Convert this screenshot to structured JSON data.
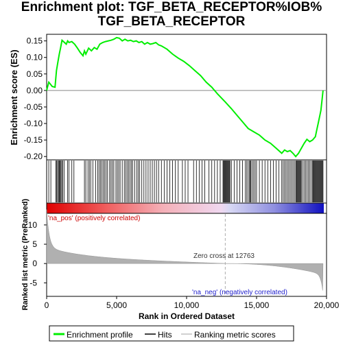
{
  "chart_data": {
    "type": "line",
    "title_line1": "Enrichment plot: TGF_BETA_RECEPTOR%IOB%",
    "title_line2": "TGF_BETA_RECEPTOR",
    "es_panel": {
      "ylabel": "Enrichment score (ES)",
      "ylim": [
        -0.21,
        0.17
      ],
      "yticks": [
        0.15,
        0.1,
        0.05,
        0.0,
        -0.05,
        -0.1,
        -0.15,
        -0.2
      ],
      "ytick_labels": [
        "0.15",
        "0.10",
        "0.05",
        "0.00",
        "-0.05",
        "-0.10",
        "-0.15",
        "-0.20"
      ],
      "series": [
        {
          "name": "Enrichment profile",
          "color": "#00ee00",
          "x": [
            0,
            150,
            400,
            600,
            700,
            800,
            900,
            1000,
            1100,
            1200,
            1400,
            1500,
            1600,
            1800,
            2000,
            2200,
            2400,
            2600,
            2700,
            2800,
            3000,
            3200,
            3400,
            3600,
            3800,
            4000,
            4200,
            4400,
            4600,
            4800,
            5000,
            5200,
            5400,
            5600,
            5800,
            6000,
            6200,
            6400,
            6600,
            6800,
            7000,
            7200,
            7400,
            7600,
            7800,
            8000,
            8200,
            8600,
            9000,
            9400,
            9800,
            10200,
            10600,
            11000,
            11400,
            11800,
            12200,
            12763,
            13200,
            13600,
            14000,
            14400,
            14800,
            15200,
            15600,
            16000,
            16400,
            16800,
            17000,
            17200,
            17400,
            17600,
            17800,
            18000,
            18200,
            18400,
            18600,
            18800,
            19000,
            19200,
            19300,
            19400,
            19500,
            19600,
            19700,
            19750
          ],
          "y": [
            0.0,
            0.025,
            0.012,
            0.01,
            0.06,
            0.085,
            0.11,
            0.13,
            0.152,
            0.148,
            0.14,
            0.15,
            0.145,
            0.148,
            0.14,
            0.128,
            0.115,
            0.105,
            0.12,
            0.11,
            0.128,
            0.12,
            0.13,
            0.125,
            0.14,
            0.145,
            0.148,
            0.15,
            0.152,
            0.155,
            0.16,
            0.158,
            0.15,
            0.155,
            0.15,
            0.152,
            0.148,
            0.15,
            0.145,
            0.148,
            0.14,
            0.145,
            0.14,
            0.142,
            0.145,
            0.138,
            0.135,
            0.125,
            0.11,
            0.098,
            0.088,
            0.075,
            0.06,
            0.045,
            0.025,
            0.01,
            -0.01,
            -0.035,
            -0.055,
            -0.075,
            -0.095,
            -0.115,
            -0.125,
            -0.135,
            -0.15,
            -0.16,
            -0.175,
            -0.19,
            -0.18,
            -0.185,
            -0.182,
            -0.19,
            -0.2,
            -0.19,
            -0.175,
            -0.16,
            -0.148,
            -0.155,
            -0.15,
            -0.14,
            -0.12,
            -0.1,
            -0.08,
            -0.06,
            -0.02,
            0.0
          ]
        }
      ]
    },
    "hits_panel": {
      "hit_positions": [
        150,
        300,
        650,
        720,
        780,
        850,
        900,
        960,
        1020,
        1080,
        1150,
        1250,
        1500,
        1600,
        1800,
        1950,
        2700,
        2800,
        2950,
        3050,
        3150,
        3300,
        3500,
        3650,
        3750,
        3850,
        3950,
        4050,
        4150,
        4250,
        4350,
        4500,
        4600,
        4700,
        4800,
        4950,
        5050,
        5150,
        5250,
        5400,
        5550,
        5650,
        5750,
        5850,
        5950,
        6050,
        6150,
        6300,
        6450,
        6550,
        6650,
        6800,
        6950,
        7100,
        7250,
        7400,
        7550,
        7700,
        7850,
        8000,
        8200,
        8400,
        8600,
        8800,
        9000,
        9200,
        9400,
        9700,
        9900,
        10100,
        10500,
        10700,
        10900,
        11100,
        11300,
        11600,
        11800,
        12000,
        12200,
        12400,
        12600,
        12650,
        12700,
        12750,
        12800,
        12850,
        12900,
        12950,
        13000,
        13050,
        13100,
        13200,
        13400,
        13600,
        13800,
        14000,
        14200,
        14300,
        14400,
        14500,
        14550,
        14600,
        14700,
        14800,
        14900,
        15000,
        15200,
        15400,
        15600,
        15800,
        16000,
        16200,
        16400,
        16600,
        16800,
        16900,
        17000,
        17100,
        17200,
        17300,
        17400,
        17500,
        17600,
        17700,
        17800,
        17850,
        17900,
        17950,
        18000,
        18050,
        18100,
        18150,
        18200,
        18300,
        18400,
        18500,
        18600,
        18700,
        18800,
        18900,
        19000,
        19050,
        19100,
        19150,
        19200,
        19250,
        19300,
        19350,
        19400,
        19450,
        19500,
        19550,
        19600,
        19650,
        19700,
        19750
      ]
    },
    "metric_panel": {
      "ylabel": "Ranked list metric (PreRanked)",
      "ylim": [
        -8.5,
        13
      ],
      "yticks": [
        10,
        5,
        0,
        -5
      ],
      "ytick_labels": [
        "10",
        "5",
        "0",
        "-5"
      ],
      "zero_cross_label": "Zero cross at 12763",
      "zero_cross": 12763,
      "pos_label": "'na_pos' (positively correlated)",
      "neg_label": "'na_neg' (negatively correlated)",
      "fill_color": "#b0b0b0"
    },
    "xaxis": {
      "xlabel": "Rank in Ordered Dataset",
      "xlim": [
        0,
        20000
      ],
      "xticks": [
        0,
        5000,
        10000,
        15000,
        20000
      ],
      "xtick_labels": [
        "0",
        "5,000",
        "10,000",
        "15,000",
        "20,000"
      ],
      "n_genes": 19750
    },
    "legend": {
      "items": [
        {
          "label": "Enrichment profile",
          "color": "#00ee00"
        },
        {
          "label": "Hits",
          "color": "#000000"
        },
        {
          "label": "Ranking metric scores",
          "color": "#c0c0c0"
        }
      ]
    }
  }
}
